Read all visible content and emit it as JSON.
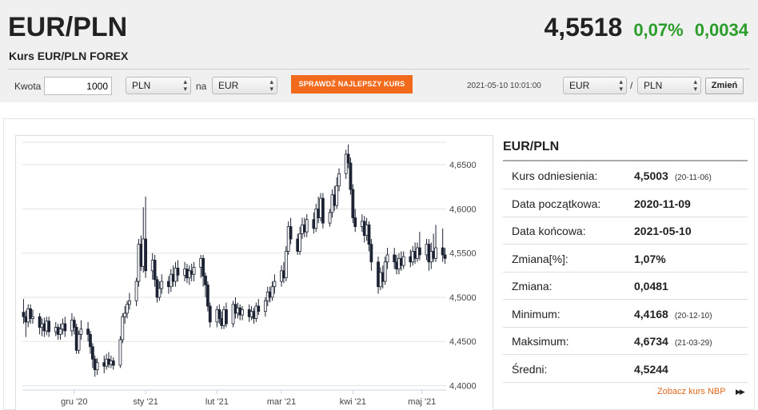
{
  "header": {
    "title": "EUR/PLN",
    "subtitle": "Kurs EUR/PLN FOREX",
    "rate": "4,5518",
    "change_percent": "0,07%",
    "change_abs": "0,0034",
    "change_color": "#2a9d2a"
  },
  "converter": {
    "amount_label": "Kwota",
    "amount_value": "1000",
    "from_currency": "PLN",
    "on_label": "na",
    "to_currency": "EUR",
    "best_rate_label": "SPRAWDŹ NAJLEPSZY KURS",
    "best_rate_color": "#f26a1b",
    "timestamp": "2021-05-10 10:01:00",
    "pair_base": "EUR",
    "slash": "/",
    "pair_quote": "PLN",
    "swap_label": "Zmień"
  },
  "chart_data": {
    "type": "candlestick",
    "title": "",
    "xlabel": "",
    "ylabel": "",
    "ylim": [
      4.395,
      4.6755
    ],
    "y_ticks": [
      "4,4000",
      "4,4500",
      "4,5000",
      "4,5500",
      "4,6000",
      "4,6500"
    ],
    "y_tick_values": [
      4.4,
      4.45,
      4.5,
      4.55,
      4.6,
      4.65
    ],
    "x_ticks": [
      "gru '20",
      "sty '21",
      "lut '21",
      "mar '21",
      "kwi '21",
      "maj '21"
    ],
    "x_tick_days": [
      22,
      53,
      84,
      112,
      143,
      173
    ],
    "grid": true,
    "candles": [
      {
        "day": 0,
        "o": 4.483,
        "c": 4.478,
        "h": 4.498,
        "l": 4.47
      },
      {
        "day": 1,
        "o": 4.478,
        "c": 4.472,
        "h": 4.485,
        "l": 4.455
      },
      {
        "day": 2,
        "o": 4.472,
        "c": 4.487,
        "h": 4.492,
        "l": 4.466
      },
      {
        "day": 3,
        "o": 4.487,
        "c": 4.476,
        "h": 4.492,
        "l": 4.47
      },
      {
        "day": 4,
        "o": 4.476,
        "c": 4.478,
        "h": 4.486,
        "l": 4.47
      },
      {
        "day": 7,
        "o": 4.478,
        "c": 4.466,
        "h": 4.482,
        "l": 4.458
      },
      {
        "day": 8,
        "o": 4.466,
        "c": 4.47,
        "h": 4.476,
        "l": 4.456
      },
      {
        "day": 9,
        "o": 4.47,
        "c": 4.462,
        "h": 4.477,
        "l": 4.455
      },
      {
        "day": 10,
        "o": 4.462,
        "c": 4.473,
        "h": 4.478,
        "l": 4.457
      },
      {
        "day": 11,
        "o": 4.473,
        "c": 4.461,
        "h": 4.478,
        "l": 4.455
      },
      {
        "day": 14,
        "o": 4.461,
        "c": 4.466,
        "h": 4.472,
        "l": 4.456
      },
      {
        "day": 15,
        "o": 4.466,
        "c": 4.458,
        "h": 4.47,
        "l": 4.452
      },
      {
        "day": 16,
        "o": 4.458,
        "c": 4.464,
        "h": 4.47,
        "l": 4.452
      },
      {
        "day": 17,
        "o": 4.464,
        "c": 4.47,
        "h": 4.476,
        "l": 4.458
      },
      {
        "day": 18,
        "o": 4.47,
        "c": 4.462,
        "h": 4.478,
        "l": 4.455
      },
      {
        "day": 21,
        "o": 4.462,
        "c": 4.474,
        "h": 4.482,
        "l": 4.456
      },
      {
        "day": 22,
        "o": 4.474,
        "c": 4.466,
        "h": 4.478,
        "l": 4.458
      },
      {
        "day": 23,
        "o": 4.466,
        "c": 4.44,
        "h": 4.47,
        "l": 4.436
      },
      {
        "day": 24,
        "o": 4.44,
        "c": 4.458,
        "h": 4.462,
        "l": 4.436
      },
      {
        "day": 25,
        "o": 4.458,
        "c": 4.464,
        "h": 4.474,
        "l": 4.452
      },
      {
        "day": 28,
        "o": 4.464,
        "c": 4.458,
        "h": 4.472,
        "l": 4.45
      },
      {
        "day": 29,
        "o": 4.458,
        "c": 4.444,
        "h": 4.462,
        "l": 4.436
      },
      {
        "day": 30,
        "o": 4.444,
        "c": 4.43,
        "h": 4.448,
        "l": 4.42
      },
      {
        "day": 31,
        "o": 4.43,
        "c": 4.418,
        "h": 4.434,
        "l": 4.41
      },
      {
        "day": 32,
        "o": 4.418,
        "c": 4.426,
        "h": 4.431,
        "l": 4.412
      },
      {
        "day": 35,
        "o": 4.426,
        "c": 4.422,
        "h": 4.434,
        "l": 4.414
      },
      {
        "day": 36,
        "o": 4.422,
        "c": 4.43,
        "h": 4.436,
        "l": 4.418
      },
      {
        "day": 37,
        "o": 4.43,
        "c": 4.424,
        "h": 4.438,
        "l": 4.42
      },
      {
        "day": 38,
        "o": 4.424,
        "c": 4.428,
        "h": 4.434,
        "l": 4.42
      },
      {
        "day": 39,
        "o": 4.428,
        "c": 4.423,
        "h": 4.432,
        "l": 4.418
      },
      {
        "day": 42,
        "o": 4.423,
        "c": 4.452,
        "h": 4.456,
        "l": 4.42
      },
      {
        "day": 43,
        "o": 4.452,
        "c": 4.478,
        "h": 4.482,
        "l": 4.448
      },
      {
        "day": 44,
        "o": 4.478,
        "c": 4.482,
        "h": 4.49,
        "l": 4.47
      },
      {
        "day": 45,
        "o": 4.482,
        "c": 4.492,
        "h": 4.496,
        "l": 4.476
      },
      {
        "day": 46,
        "o": 4.492,
        "c": 4.496,
        "h": 4.505,
        "l": 4.486
      },
      {
        "day": 49,
        "o": 4.496,
        "c": 4.518,
        "h": 4.522,
        "l": 4.49
      },
      {
        "day": 50,
        "o": 4.518,
        "c": 4.56,
        "h": 4.566,
        "l": 4.512
      },
      {
        "day": 51,
        "o": 4.56,
        "c": 4.535,
        "h": 4.57,
        "l": 4.53
      },
      {
        "day": 52,
        "o": 4.535,
        "c": 4.566,
        "h": 4.602,
        "l": 4.528
      },
      {
        "day": 53,
        "o": 4.566,
        "c": 4.53,
        "h": 4.614,
        "l": 4.522
      },
      {
        "day": 56,
        "o": 4.53,
        "c": 4.542,
        "h": 4.55,
        "l": 4.52
      },
      {
        "day": 57,
        "o": 4.542,
        "c": 4.52,
        "h": 4.548,
        "l": 4.512
      },
      {
        "day": 58,
        "o": 4.52,
        "c": 4.5,
        "h": 4.524,
        "l": 4.494
      },
      {
        "day": 59,
        "o": 4.5,
        "c": 4.51,
        "h": 4.518,
        "l": 4.496
      },
      {
        "day": 60,
        "o": 4.51,
        "c": 4.518,
        "h": 4.526,
        "l": 4.504
      },
      {
        "day": 63,
        "o": 4.518,
        "c": 4.512,
        "h": 4.524,
        "l": 4.504
      },
      {
        "day": 64,
        "o": 4.512,
        "c": 4.526,
        "h": 4.532,
        "l": 4.506
      },
      {
        "day": 65,
        "o": 4.526,
        "c": 4.518,
        "h": 4.536,
        "l": 4.512
      },
      {
        "day": 66,
        "o": 4.518,
        "c": 4.533,
        "h": 4.54,
        "l": 4.512
      },
      {
        "day": 67,
        "o": 4.533,
        "c": 4.525,
        "h": 4.542,
        "l": 4.518
      },
      {
        "day": 70,
        "o": 4.525,
        "c": 4.532,
        "h": 4.54,
        "l": 4.518
      },
      {
        "day": 71,
        "o": 4.532,
        "c": 4.522,
        "h": 4.538,
        "l": 4.516
      },
      {
        "day": 72,
        "o": 4.522,
        "c": 4.53,
        "h": 4.536,
        "l": 4.514
      },
      {
        "day": 73,
        "o": 4.53,
        "c": 4.526,
        "h": 4.538,
        "l": 4.518
      },
      {
        "day": 74,
        "o": 4.526,
        "c": 4.534,
        "h": 4.54,
        "l": 4.518
      },
      {
        "day": 77,
        "o": 4.534,
        "c": 4.544,
        "h": 4.548,
        "l": 4.522
      },
      {
        "day": 78,
        "o": 4.544,
        "c": 4.524,
        "h": 4.548,
        "l": 4.512
      },
      {
        "day": 79,
        "o": 4.524,
        "c": 4.514,
        "h": 4.528,
        "l": 4.5
      },
      {
        "day": 80,
        "o": 4.514,
        "c": 4.49,
        "h": 4.518,
        "l": 4.484
      },
      {
        "day": 81,
        "o": 4.49,
        "c": 4.472,
        "h": 4.494,
        "l": 4.466
      },
      {
        "day": 84,
        "o": 4.472,
        "c": 4.486,
        "h": 4.49,
        "l": 4.466
      },
      {
        "day": 85,
        "o": 4.486,
        "c": 4.476,
        "h": 4.492,
        "l": 4.47
      },
      {
        "day": 86,
        "o": 4.476,
        "c": 4.468,
        "h": 4.484,
        "l": 4.464
      },
      {
        "day": 87,
        "o": 4.468,
        "c": 4.486,
        "h": 4.49,
        "l": 4.464
      },
      {
        "day": 88,
        "o": 4.486,
        "c": 4.47,
        "h": 4.494,
        "l": 4.466
      },
      {
        "day": 91,
        "o": 4.47,
        "c": 4.492,
        "h": 4.496,
        "l": 4.466
      },
      {
        "day": 92,
        "o": 4.492,
        "c": 4.482,
        "h": 4.5,
        "l": 4.476
      },
      {
        "day": 93,
        "o": 4.482,
        "c": 4.488,
        "h": 4.494,
        "l": 4.476
      },
      {
        "day": 94,
        "o": 4.488,
        "c": 4.48,
        "h": 4.492,
        "l": 4.474
      },
      {
        "day": 95,
        "o": 4.48,
        "c": 4.486,
        "h": 4.49,
        "l": 4.474
      },
      {
        "day": 98,
        "o": 4.486,
        "c": 4.478,
        "h": 4.492,
        "l": 4.472
      },
      {
        "day": 99,
        "o": 4.478,
        "c": 4.484,
        "h": 4.49,
        "l": 4.474
      },
      {
        "day": 100,
        "o": 4.484,
        "c": 4.476,
        "h": 4.488,
        "l": 4.47
      },
      {
        "day": 101,
        "o": 4.476,
        "c": 4.49,
        "h": 4.494,
        "l": 4.472
      },
      {
        "day": 102,
        "o": 4.49,
        "c": 4.484,
        "h": 4.498,
        "l": 4.48
      },
      {
        "day": 105,
        "o": 4.484,
        "c": 4.496,
        "h": 4.5,
        "l": 4.478
      },
      {
        "day": 106,
        "o": 4.496,
        "c": 4.506,
        "h": 4.512,
        "l": 4.49
      },
      {
        "day": 107,
        "o": 4.506,
        "c": 4.5,
        "h": 4.512,
        "l": 4.494
      },
      {
        "day": 108,
        "o": 4.5,
        "c": 4.512,
        "h": 4.518,
        "l": 4.496
      },
      {
        "day": 109,
        "o": 4.512,
        "c": 4.518,
        "h": 4.526,
        "l": 4.504
      },
      {
        "day": 112,
        "o": 4.518,
        "c": 4.53,
        "h": 4.536,
        "l": 4.512
      },
      {
        "day": 113,
        "o": 4.53,
        "c": 4.522,
        "h": 4.54,
        "l": 4.516
      },
      {
        "day": 114,
        "o": 4.522,
        "c": 4.552,
        "h": 4.558,
        "l": 4.518
      },
      {
        "day": 115,
        "o": 4.552,
        "c": 4.58,
        "h": 4.586,
        "l": 4.548
      },
      {
        "day": 116,
        "o": 4.58,
        "c": 4.566,
        "h": 4.59,
        "l": 4.56
      },
      {
        "day": 119,
        "o": 4.566,
        "c": 4.552,
        "h": 4.572,
        "l": 4.548
      },
      {
        "day": 120,
        "o": 4.552,
        "c": 4.572,
        "h": 4.58,
        "l": 4.548
      },
      {
        "day": 121,
        "o": 4.572,
        "c": 4.582,
        "h": 4.59,
        "l": 4.566
      },
      {
        "day": 122,
        "o": 4.582,
        "c": 4.574,
        "h": 4.59,
        "l": 4.568
      },
      {
        "day": 123,
        "o": 4.574,
        "c": 4.588,
        "h": 4.594,
        "l": 4.568
      },
      {
        "day": 126,
        "o": 4.588,
        "c": 4.578,
        "h": 4.596,
        "l": 4.572
      },
      {
        "day": 127,
        "o": 4.578,
        "c": 4.6,
        "h": 4.606,
        "l": 4.574
      },
      {
        "day": 128,
        "o": 4.6,
        "c": 4.59,
        "h": 4.614,
        "l": 4.584
      },
      {
        "day": 129,
        "o": 4.59,
        "c": 4.612,
        "h": 4.618,
        "l": 4.586
      },
      {
        "day": 130,
        "o": 4.612,
        "c": 4.584,
        "h": 4.618,
        "l": 4.578
      },
      {
        "day": 133,
        "o": 4.584,
        "c": 4.596,
        "h": 4.6,
        "l": 4.58
      },
      {
        "day": 134,
        "o": 4.596,
        "c": 4.616,
        "h": 4.622,
        "l": 4.59
      },
      {
        "day": 135,
        "o": 4.616,
        "c": 4.604,
        "h": 4.626,
        "l": 4.598
      },
      {
        "day": 136,
        "o": 4.604,
        "c": 4.626,
        "h": 4.636,
        "l": 4.6
      },
      {
        "day": 137,
        "o": 4.626,
        "c": 4.64,
        "h": 4.646,
        "l": 4.62
      },
      {
        "day": 140,
        "o": 4.64,
        "c": 4.662,
        "h": 4.667,
        "l": 4.634
      },
      {
        "day": 141,
        "o": 4.662,
        "c": 4.652,
        "h": 4.673,
        "l": 4.646
      },
      {
        "day": 142,
        "o": 4.652,
        "c": 4.622,
        "h": 4.658,
        "l": 4.616
      },
      {
        "day": 143,
        "o": 4.622,
        "c": 4.59,
        "h": 4.628,
        "l": 4.584
      },
      {
        "day": 144,
        "o": 4.59,
        "c": 4.58,
        "h": 4.6,
        "l": 4.574
      },
      {
        "day": 147,
        "o": 4.58,
        "c": 4.586,
        "h": 4.594,
        "l": 4.574
      },
      {
        "day": 148,
        "o": 4.586,
        "c": 4.57,
        "h": 4.592,
        "l": 4.562
      },
      {
        "day": 149,
        "o": 4.57,
        "c": 4.582,
        "h": 4.59,
        "l": 4.564
      },
      {
        "day": 150,
        "o": 4.582,
        "c": 4.56,
        "h": 4.586,
        "l": 4.552
      },
      {
        "day": 151,
        "o": 4.56,
        "c": 4.54,
        "h": 4.566,
        "l": 4.53
      },
      {
        "day": 154,
        "o": 4.54,
        "c": 4.512,
        "h": 4.546,
        "l": 4.504
      },
      {
        "day": 155,
        "o": 4.512,
        "c": 4.528,
        "h": 4.534,
        "l": 4.508
      },
      {
        "day": 156,
        "o": 4.528,
        "c": 4.518,
        "h": 4.536,
        "l": 4.51
      },
      {
        "day": 157,
        "o": 4.518,
        "c": 4.54,
        "h": 4.546,
        "l": 4.514
      },
      {
        "day": 158,
        "o": 4.54,
        "c": 4.548,
        "h": 4.556,
        "l": 4.532
      },
      {
        "day": 161,
        "o": 4.548,
        "c": 4.54,
        "h": 4.556,
        "l": 4.532
      },
      {
        "day": 162,
        "o": 4.54,
        "c": 4.532,
        "h": 4.548,
        "l": 4.526
      },
      {
        "day": 163,
        "o": 4.532,
        "c": 4.544,
        "h": 4.55,
        "l": 4.526
      },
      {
        "day": 164,
        "o": 4.544,
        "c": 4.536,
        "h": 4.552,
        "l": 4.53
      },
      {
        "day": 165,
        "o": 4.536,
        "c": 4.546,
        "h": 4.552,
        "l": 4.532
      },
      {
        "day": 168,
        "o": 4.546,
        "c": 4.54,
        "h": 4.554,
        "l": 4.534
      },
      {
        "day": 169,
        "o": 4.54,
        "c": 4.552,
        "h": 4.558,
        "l": 4.536
      },
      {
        "day": 170,
        "o": 4.552,
        "c": 4.544,
        "h": 4.562,
        "l": 4.538
      },
      {
        "day": 171,
        "o": 4.544,
        "c": 4.556,
        "h": 4.562,
        "l": 4.54
      },
      {
        "day": 172,
        "o": 4.556,
        "c": 4.548,
        "h": 4.574,
        "l": 4.542
      },
      {
        "day": 175,
        "o": 4.548,
        "c": 4.56,
        "h": 4.566,
        "l": 4.542
      },
      {
        "day": 176,
        "o": 4.56,
        "c": 4.54,
        "h": 4.566,
        "l": 4.53
      },
      {
        "day": 177,
        "o": 4.54,
        "c": 4.552,
        "h": 4.562,
        "l": 4.532
      },
      {
        "day": 178,
        "o": 4.552,
        "c": 4.544,
        "h": 4.572,
        "l": 4.54
      },
      {
        "day": 179,
        "o": 4.544,
        "c": 4.556,
        "h": 4.582,
        "l": 4.54
      },
      {
        "day": 182,
        "o": 4.556,
        "c": 4.548,
        "h": 4.578,
        "l": 4.54
      },
      {
        "day": 183,
        "o": 4.548,
        "c": 4.544,
        "h": 4.556,
        "l": 4.538
      }
    ],
    "up_color": "#ffffff",
    "down_color": "#1c2333"
  },
  "stats": {
    "title": "EUR/PLN",
    "rows": [
      {
        "label": "Kurs odniesienia:",
        "value": "4,5003",
        "date": "(20-11-06)"
      },
      {
        "label": "Data początkowa:",
        "value": "2020-11-09",
        "date": ""
      },
      {
        "label": "Data końcowa:",
        "value": "2021-05-10",
        "date": ""
      },
      {
        "label": "Zmiana[%]:",
        "value": "1,07%",
        "date": ""
      },
      {
        "label": "Zmiana:",
        "value": "0,0481",
        "date": ""
      },
      {
        "label": "Minimum:",
        "value": "4,4168",
        "date": "(20-12-10)"
      },
      {
        "label": "Maksimum:",
        "value": "4,6734",
        "date": "(21-03-29)"
      },
      {
        "label": "Średni:",
        "value": "4,5244",
        "date": ""
      }
    ],
    "nbp_link": "Zobacz kurs NBP",
    "nbp_icon": "double-chevron-right-icon",
    "link_color": "#e0651a"
  }
}
